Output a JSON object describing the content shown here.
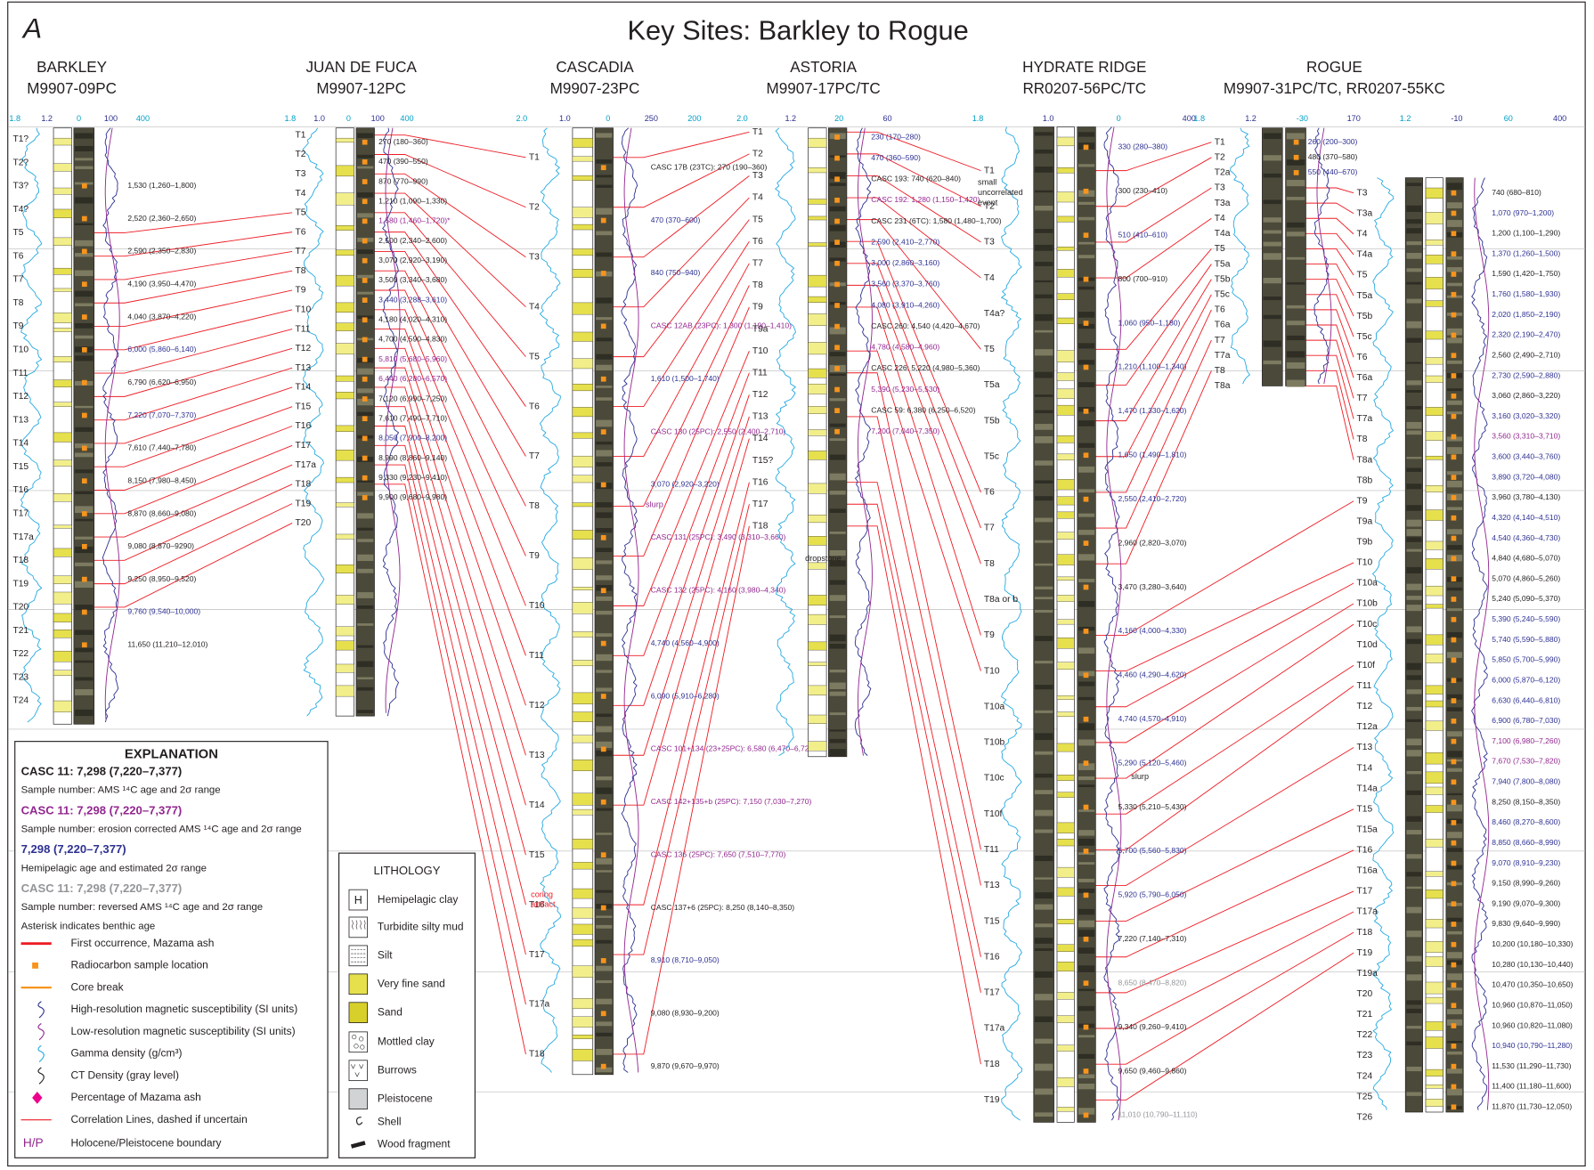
{
  "panel_label": "A",
  "title": "Key Sites: Barkley to Rogue",
  "sites": [
    {
      "name": "BARKLEY",
      "core": "M9907-09PC",
      "scale_labels": [
        "1.8",
        "1.2",
        "0",
        "100",
        "400"
      ],
      "columns": [
        {
          "labels": [
            "T1?",
            "T2?",
            "T3?",
            "T4?",
            "T5",
            "T6",
            "T7",
            "T8",
            "T9",
            "T10",
            "T11",
            "T12",
            "T13",
            "T14",
            "T15",
            "T16",
            "T17",
            "T17a",
            "T18",
            "T19",
            "T20",
            "T21",
            "T22",
            "T23",
            "T24"
          ],
          "ages": [
            "1,530 (1,260–1,800)",
            "2,520 (2,360–2,650)",
            "2,590 (2,350–2,830)",
            "4,190 (3,950–4,470)",
            "4,040 (3,870–4,220)",
            {
              "text": "6,000 (5,860–6,140)",
              "color": "#2e3192"
            },
            "6,790 (6,620–6,950)",
            {
              "text": "7,220 (7,070–7,370)",
              "color": "#2e3192"
            },
            "7,610 (7,440–7,780)",
            "8,150 (7,980–8,450)",
            "8,870 (8,660–9,080)",
            "9,080 (8,870–9290)",
            "9,250 (8,950–9,520)",
            {
              "text": "9,760 (9,540–10,000)",
              "color": "#2e3192"
            },
            "11,650 (11,210–12,010)"
          ]
        }
      ]
    },
    {
      "name": "JUAN DE FUCA",
      "core": "M9907-12PC",
      "scale_labels": [
        "1.8",
        "1.0",
        "0",
        "100",
        "400"
      ],
      "columns": [
        {
          "labels": [
            "T1",
            "T2",
            "T3",
            "T4",
            "T5",
            "T6",
            "T7",
            "T8",
            "T9",
            "T10",
            "T11",
            "T12",
            "T13",
            "T14",
            "T15",
            "T16",
            "T17",
            "T17a",
            "T18",
            "T19",
            "T20"
          ],
          "ages": [
            "270 (180–360)",
            "470 (390–550)",
            "870 (770–990)",
            "1,210 (1,090–1,330)",
            {
              "text": "1,580 (1,460–1,720)*",
              "color": "#92278f"
            },
            "2,500 (2,340–2,600)",
            "3,070 (2,920–3,190)",
            "3,500 (3,340–3,680)",
            {
              "text": "3,440 (3,288–3,610)",
              "color": "#2e3192"
            },
            "4,180 (4,020–4,310)",
            "4,700 (4,590–4,830)",
            {
              "text": "5,810 (5,680–5,960)",
              "color": "#92278f"
            },
            {
              "text": "6,440 (6,280–6,570)",
              "color": "#92278f"
            },
            "7,120 (6,990–7,250)",
            "7,610 (7,490–7,710)",
            {
              "text": "8,050 (7,900–8,200)",
              "color": "#2e3192"
            },
            "8,990 (8,860–9,140)",
            "9,330 (9,230–9,410)",
            "9,900 (9,680–9,980)"
          ]
        }
      ]
    },
    {
      "name": "CASCADIA",
      "core": "M9907-23PC",
      "scale_labels": [
        "2.0",
        "1.0",
        "0",
        "250",
        "200"
      ],
      "columns": [
        {
          "labels": [
            "T1",
            "T2",
            "T3",
            "T4",
            "T5",
            "T6",
            "T7",
            "T8",
            "T9",
            "T10",
            "T11",
            "T12",
            "T13",
            "T14",
            "T15",
            "T16",
            "T17",
            "T17a",
            "T18"
          ],
          "ages": [
            "CASC 17B (23TC): 270 (190–360)",
            {
              "text": "470 (370–600)",
              "color": "#2e3192"
            },
            {
              "text": "840 (750–940)",
              "color": "#2e3192"
            },
            {
              "text": "CASC 12AB (23PC): 1,300 (1,190–1,410)",
              "color": "#92278f"
            },
            {
              "text": "1,610 (1,500–1,740)",
              "color": "#2e3192"
            },
            {
              "text": "CASC 130 (25PC): 2,550 (2,400–2,710)",
              "color": "#92278f"
            },
            {
              "text": "3,070 (2,920–3,220)",
              "color": "#2e3192"
            },
            {
              "text": "CASC 131 (25PC): 3,490 (3,310–3,660)",
              "color": "#92278f"
            },
            {
              "text": "CASC 132 (25PC): 4,160 (3,980–4,340)",
              "color": "#92278f"
            },
            {
              "text": "4,740 (4,560–4,900)",
              "color": "#2e3192"
            },
            {
              "text": "6,090 (5,910–6,280)",
              "color": "#2e3192"
            },
            {
              "text": "CASC 101+134 (23+25PC): 6,580 (6,470–6,720)",
              "color": "#92278f"
            },
            {
              "text": "CASC 142+135+b (25PC): 7,150 (7,030–7,270)",
              "color": "#92278f"
            },
            {
              "text": "CASC 136 (25PC): 7,650 (7,510–7,770)",
              "color": "#92278f"
            },
            "CASC 137+6 (25PC): 8,250 (8,140–8,350)",
            {
              "text": "8,910 (8,710–9,050)",
              "color": "#2e3192"
            },
            "9,080 (8,930–9,200)",
            "9,870 (9,670–9,970)"
          ]
        }
      ]
    },
    {
      "name": "ASTORIA",
      "core": "M9907-17PC/TC",
      "scale_labels": [
        "2.0",
        "1.2",
        "20",
        "60"
      ],
      "columns": [
        {
          "labels": [
            "T1",
            "T2",
            "T3",
            "T4",
            "T5",
            "T6",
            "T7",
            "T8",
            "T9",
            "T9a",
            "T10",
            "T11",
            "T12",
            "T13",
            "T14",
            "T15?",
            "T16",
            "T17",
            "T18"
          ],
          "ages": [
            {
              "text": "230 (170–280)",
              "color": "#2e3192"
            },
            {
              "text": "470 (360–590)",
              "color": "#2e3192"
            },
            "CASC 193: 740 (620–840)",
            {
              "text": "CASC 192: 1,280 (1,150–1,420)",
              "color": "#92278f"
            },
            "CASC 231 (6TC): 1,580 (1,480–1,700)",
            {
              "text": "2,590 (2,410–2,770)",
              "color": "#2e3192"
            },
            {
              "text": "3,000 (2,860–3,160)",
              "color": "#2e3192"
            },
            {
              "text": "3,560 (3,370–3,760)",
              "color": "#2e3192"
            },
            {
              "text": "4,080 (3,910–4,260)",
              "color": "#2e3192"
            },
            "CASC 260: 4,540 (4,420–4,670)",
            {
              "text": "4,780 (4,580–4,960)",
              "color": "#92278f"
            },
            "CASC 226: 5,220 (4,980–5,360)",
            {
              "text": "5,390 (5,230–5,530)",
              "color": "#92278f"
            },
            "CASC 59: 6,380 (6,250–6,520)",
            {
              "text": "7,200 (7,040–7,350)",
              "color": "#92278f"
            }
          ]
        }
      ]
    },
    {
      "name": "HYDRATE RIDGE",
      "core": "RR0207-56PC/TC",
      "scale_labels": [
        "1.8",
        "1.0",
        "0",
        "400"
      ],
      "columns": [
        {
          "labels": [
            "T1",
            "T2",
            "T3",
            "T4",
            "T4a?",
            "T5",
            "T5a",
            "T5b",
            "T5c",
            "T6",
            "T7",
            "T8",
            "T8a or b",
            "T9",
            "T10",
            "T10a",
            "T10b",
            "T10c",
            "T10f",
            "T11",
            "T13",
            "T15",
            "T16",
            "T17",
            "T17a",
            "T18",
            "T19"
          ],
          "ages": [
            {
              "text": "330 (280–380)",
              "color": "#2e3192"
            },
            "300 (230–410)",
            {
              "text": "510 (410–610)",
              "color": "#2e3192"
            },
            "800 (700–910)",
            {
              "text": "1,060 (950–1,180)",
              "color": "#2e3192"
            },
            {
              "text": "1,210 (1,100–1,340)",
              "color": "#2e3192"
            },
            {
              "text": "1,470 (1,330–1,620)",
              "color": "#2e3192"
            },
            {
              "text": "1,650 (1,490–1,810)",
              "color": "#2e3192"
            },
            {
              "text": "2,550 (2,410–2,720)",
              "color": "#2e3192"
            },
            "2,960 (2,820–3,070)",
            "3,470 (3,280–3,640)",
            {
              "text": "4,160 (4,000–4,330)",
              "color": "#2e3192"
            },
            {
              "text": "4,460 (4,290–4,620)",
              "color": "#2e3192"
            },
            {
              "text": "4,740 (4,570–4,910)",
              "color": "#2e3192"
            },
            {
              "text": "5,290 (5,120–5,460)",
              "color": "#2e3192"
            },
            "5,330 (5,210–5,430)",
            {
              "text": "5,700 (5,560–5,830)",
              "color": "#2e3192"
            },
            {
              "text": "5,920 (5,790–6,050)",
              "color": "#2e3192"
            },
            "7,220 (7,140–7,310)",
            {
              "text": "8,650 (8,470–8,820)",
              "color": "#939598"
            },
            "9,340 (9,260–9,410)",
            "9,650 (9,460–9,860)",
            {
              "text": "11,010 (10,790–11,110)",
              "color": "#939598"
            }
          ]
        }
      ]
    },
    {
      "name": "ROGUE",
      "core": "M9907-31PC/TC, RR0207-55KC",
      "scale_labels": [
        "1.8",
        "1.2",
        "-30",
        "170",
        "1.2",
        "-10",
        "60",
        "400"
      ],
      "columns": [
        {
          "labels": [
            "T1",
            "T2",
            "T2a",
            "T3",
            "T3a",
            "T4",
            "T4a",
            "T5",
            "T5a",
            "T5b",
            "T5c",
            "T6",
            "T6a",
            "T7",
            "T7a",
            "T8",
            "T8a"
          ],
          "ages": [
            {
              "text": "260 (200–300)",
              "color": "#2e3192"
            },
            "480 (370–580)",
            {
              "text": "550 (440–670)",
              "color": "#2e3192"
            }
          ]
        },
        {
          "labels": [
            "T3",
            "T3a",
            "T4",
            "T4a",
            "T5",
            "T5a",
            "T5b",
            "T5c",
            "T6",
            "T6a",
            "T7",
            "T7a",
            "T8",
            "T8a",
            "T8b",
            "T9",
            "T9a",
            "T9b",
            "T10",
            "T10a",
            "T10b",
            "T10c",
            "T10d",
            "T10f",
            "T11",
            "T12",
            "T12a",
            "T13",
            "T14",
            "T14a",
            "T15",
            "T15a",
            "T16",
            "T16a",
            "T17",
            "T17a",
            "T18",
            "T19",
            "T19a",
            "T20",
            "T21",
            "T22",
            "T23",
            "T24",
            "T25",
            "T26"
          ],
          "ages": [
            "740 (680–810)",
            {
              "text": "1,070 (970–1,200)",
              "color": "#2e3192"
            },
            "1,200 (1,100–1,290)",
            {
              "text": "1,370 (1,260–1,500)",
              "color": "#2e3192"
            },
            "1,590 (1,420–1,750)",
            {
              "text": "1,760 (1,580–1,930)",
              "color": "#2e3192"
            },
            {
              "text": "2,020 (1,850–2,190)",
              "color": "#2e3192"
            },
            {
              "text": "2,320 (2,190–2,470)",
              "color": "#2e3192"
            },
            "2,560 (2,490–2,710)",
            {
              "text": "2,730 (2,590–2,880)",
              "color": "#2e3192"
            },
            "3,060 (2,860–3,220)",
            {
              "text": "3,160 (3,020–3,320)",
              "color": "#2e3192"
            },
            {
              "text": "3,560 (3,310–3,710)",
              "color": "#92278f"
            },
            {
              "text": "3,600 (3,440–3,760)",
              "color": "#2e3192"
            },
            {
              "text": "3,890 (3,720–4,080)",
              "color": "#2e3192"
            },
            "3,960 (3,780–4,130)",
            {
              "text": "4,320 (4,140–4,510)",
              "color": "#2e3192"
            },
            {
              "text": "4,540 (4,360–4,730)",
              "color": "#2e3192"
            },
            "4,840 (4,680–5,070)",
            "5,070 (4,860–5,260)",
            "5,240 (5,090–5,370)",
            {
              "text": "5,390 (5,240–5,590)",
              "color": "#2e3192"
            },
            {
              "text": "5,740 (5,590–5,880)",
              "color": "#2e3192"
            },
            {
              "text": "5,850 (5,700–5,990)",
              "color": "#2e3192"
            },
            {
              "text": "6,000 (5,870–6,120)",
              "color": "#2e3192"
            },
            {
              "text": "6,630 (6,440–6,810)",
              "color": "#2e3192"
            },
            {
              "text": "6,900 (6,780–7,030)",
              "color": "#2e3192"
            },
            {
              "text": "7,100 (6,980–7,260)",
              "color": "#92278f"
            },
            {
              "text": "7,670 (7,530–7,820)",
              "color": "#92278f"
            },
            {
              "text": "7,940 (7,800–8,080)",
              "color": "#2e3192"
            },
            "8,250 (8,150–8,350)",
            {
              "text": "8,460 (8,270–8,600)",
              "color": "#2e3192"
            },
            {
              "text": "8,850 (8,660–8,990)",
              "color": "#2e3192"
            },
            {
              "text": "9,070 (8,910–9,230)",
              "color": "#2e3192"
            },
            "9,150 (8,990–9,260)",
            "9,190 (9,070–9,300)",
            "9,830 (9,640–9,990)",
            "10,200 (10,180–10,330)",
            "10,280 (10,130–10,440)",
            "10,470 (10,350–10,650)",
            "10,960 (10,870–11,050)",
            "10,960 (10,820–11,080)",
            {
              "text": "10,940 (10,790–11,280)",
              "color": "#2e3192"
            },
            "11,530 (11,290–11,730)",
            "11,400 (11,180–11,600)",
            "11,870 (11,730–12,050)"
          ]
        }
      ]
    }
  ],
  "annotations": {
    "uncorrelated": [
      "small",
      "uncorrelated",
      "event"
    ],
    "slurp_cascadia": "slurp",
    "slurp_hydrate": "slurp",
    "dropstone": "dropstone",
    "coring": [
      "coring",
      "artifact"
    ]
  },
  "explanation": {
    "title": "EXPLANATION",
    "samples": [
      {
        "label": "CASC 11: 7,298 (7,220–7,377)",
        "color": "#231f20",
        "note": "Sample number: AMS ¹⁴C age and 2σ range"
      },
      {
        "label": "CASC 11: 7,298 (7,220–7,377)",
        "color": "#92278f",
        "note": "Sample number: erosion corrected AMS ¹⁴C age and 2σ range"
      },
      {
        "label": "7,298 (7,220–7,377)",
        "color": "#2e3192",
        "note": "Hemipelagic age and estimated 2σ range"
      },
      {
        "label": "CASC 11: 7,298 (7,220–7,377)",
        "color": "#939598",
        "note": "Sample number: reversed AMS ¹⁴C age and 2σ range"
      }
    ],
    "benthic_note": "Asterisk indicates benthic age",
    "symbols": [
      "First occurrence, Mazama ash",
      "Radiocarbon sample location",
      "Core break",
      "High-resolution magnetic susceptibility (SI units)",
      "Low-resolution magnetic susceptibility (SI units)",
      "Gamma density (g/cm³)",
      "CT Density (gray level)",
      "Percentage of Mazama ash",
      "Correlation Lines, dashed if uncertain"
    ],
    "boundary": {
      "symbol": "H/P",
      "text": "Holocene/Pleistocene boundary"
    }
  },
  "lithology": {
    "title": "LITHOLOGY",
    "hemipelagic_symbol": "H",
    "items": [
      "Hemipelagic clay",
      "Turbidite silty mud",
      "Silt",
      "Very fine sand",
      "Sand",
      "Mottled clay",
      "Burrows",
      "Pleistocene",
      "Shell",
      "Wood fragment"
    ]
  }
}
